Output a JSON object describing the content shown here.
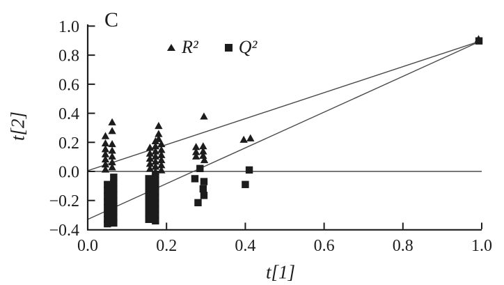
{
  "chart_data": {
    "type": "scatter",
    "panel_label": "C",
    "xlabel": "t[1]",
    "ylabel": "t[2]",
    "xlim": [
      0.0,
      1.0
    ],
    "ylim": [
      -0.4,
      1.0
    ],
    "grid": false,
    "legend_position": "top-center",
    "x_ticks": [
      {
        "v": 0.0,
        "label": "0.0"
      },
      {
        "v": 0.2,
        "label": "0.2"
      },
      {
        "v": 0.4,
        "label": "0.4"
      },
      {
        "v": 0.6,
        "label": "0.6"
      },
      {
        "v": 0.8,
        "label": "0.8"
      },
      {
        "v": 1.0,
        "label": "1.0"
      }
    ],
    "y_ticks": [
      {
        "v": 1.0,
        "label": "1.0"
      },
      {
        "v": 0.8,
        "label": "0.8"
      },
      {
        "v": 0.6,
        "label": "0.6"
      },
      {
        "v": 0.4,
        "label": "0.4"
      },
      {
        "v": 0.2,
        "label": "0.2"
      },
      {
        "v": 0.0,
        "label": "0.0"
      },
      {
        "v": -0.2,
        "label": "−0.2"
      },
      {
        "v": -0.4,
        "label": "−0.4"
      }
    ],
    "series": [
      {
        "name": "R²",
        "marker": "triangle",
        "points": [
          [
            0.045,
            0.245
          ],
          [
            0.045,
            0.195
          ],
          [
            0.045,
            0.155
          ],
          [
            0.045,
            0.12
          ],
          [
            0.045,
            0.085
          ],
          [
            0.045,
            0.05
          ],
          [
            0.045,
            0.015
          ],
          [
            0.062,
            0.34
          ],
          [
            0.062,
            0.28
          ],
          [
            0.062,
            0.19
          ],
          [
            0.062,
            0.145
          ],
          [
            0.062,
            0.105
          ],
          [
            0.062,
            0.065
          ],
          [
            0.062,
            0.03
          ],
          [
            0.18,
            0.315
          ],
          [
            0.18,
            0.26
          ],
          [
            0.18,
            0.225
          ],
          [
            0.158,
            0.165
          ],
          [
            0.158,
            0.125
          ],
          [
            0.158,
            0.09
          ],
          [
            0.158,
            0.055
          ],
          [
            0.158,
            0.02
          ],
          [
            0.172,
            0.21
          ],
          [
            0.172,
            0.175
          ],
          [
            0.172,
            0.14
          ],
          [
            0.172,
            0.105
          ],
          [
            0.172,
            0.07
          ],
          [
            0.172,
            0.035
          ],
          [
            0.172,
            0.0
          ],
          [
            0.187,
            0.19
          ],
          [
            0.187,
            0.15
          ],
          [
            0.187,
            0.115
          ],
          [
            0.187,
            0.08
          ],
          [
            0.187,
            0.045
          ],
          [
            0.187,
            0.01
          ],
          [
            0.295,
            0.38
          ],
          [
            0.275,
            0.17
          ],
          [
            0.275,
            0.135
          ],
          [
            0.275,
            0.105
          ],
          [
            0.293,
            0.175
          ],
          [
            0.293,
            0.14
          ],
          [
            0.293,
            0.11
          ],
          [
            0.296,
            0.08
          ],
          [
            0.396,
            0.22
          ],
          [
            0.413,
            0.23
          ],
          [
            0.992,
            0.912
          ]
        ]
      },
      {
        "name": "Q²",
        "marker": "square",
        "points": [
          [
            0.05,
            -0.09
          ],
          [
            0.05,
            -0.13
          ],
          [
            0.05,
            -0.17
          ],
          [
            0.05,
            -0.21
          ],
          [
            0.05,
            -0.25
          ],
          [
            0.05,
            -0.29
          ],
          [
            0.05,
            -0.33
          ],
          [
            0.05,
            -0.36
          ],
          [
            0.066,
            -0.04
          ],
          [
            0.066,
            -0.08
          ],
          [
            0.066,
            -0.12
          ],
          [
            0.066,
            -0.16
          ],
          [
            0.066,
            -0.2
          ],
          [
            0.066,
            -0.24
          ],
          [
            0.066,
            -0.28
          ],
          [
            0.066,
            -0.32
          ],
          [
            0.066,
            -0.355
          ],
          [
            0.155,
            -0.05
          ],
          [
            0.155,
            -0.09
          ],
          [
            0.155,
            -0.13
          ],
          [
            0.155,
            -0.17
          ],
          [
            0.155,
            -0.21
          ],
          [
            0.155,
            -0.25
          ],
          [
            0.155,
            -0.29
          ],
          [
            0.155,
            -0.33
          ],
          [
            0.172,
            -0.02
          ],
          [
            0.172,
            -0.06
          ],
          [
            0.172,
            -0.1
          ],
          [
            0.172,
            -0.14
          ],
          [
            0.172,
            -0.18
          ],
          [
            0.172,
            -0.22
          ],
          [
            0.172,
            -0.26
          ],
          [
            0.172,
            -0.3
          ],
          [
            0.172,
            -0.34
          ],
          [
            0.285,
            0.02
          ],
          [
            0.272,
            -0.05
          ],
          [
            0.295,
            -0.07
          ],
          [
            0.293,
            -0.12
          ],
          [
            0.295,
            -0.165
          ],
          [
            0.28,
            -0.215
          ],
          [
            0.41,
            0.01
          ],
          [
            0.4,
            -0.09
          ],
          [
            0.993,
            0.898
          ]
        ]
      }
    ],
    "ref_lines": [
      {
        "name": "r2-trend-line",
        "from": [
          0.0,
          0.005
        ],
        "to": [
          1.0,
          0.9
        ]
      },
      {
        "name": "q2-trend-line",
        "from": [
          0.0,
          -0.33
        ],
        "to": [
          1.0,
          0.9
        ]
      },
      {
        "name": "zero-line",
        "from": [
          0.0,
          0.0
        ],
        "to": [
          1.0,
          0.0
        ]
      }
    ],
    "colors": {
      "marker": "#1c1c1c",
      "ref_line": "#4a4a4a",
      "axis": "#1c1c1c",
      "text": "#1c1c1c",
      "background": "#ffffff"
    }
  }
}
